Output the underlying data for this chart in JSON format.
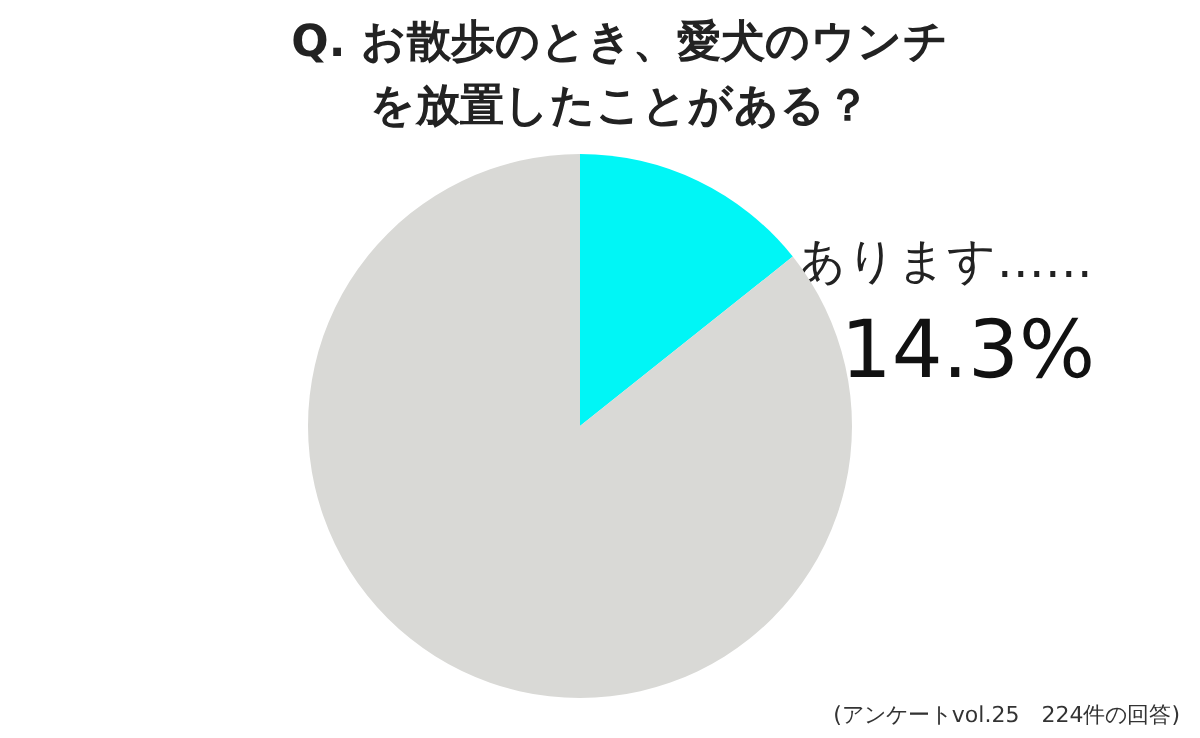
{
  "chart_data": {
    "type": "pie",
    "title": "Q.  お散歩のとき、愛犬のウンチを放置したことがある？",
    "categories": [
      "あります……",
      null
    ],
    "values": [
      14.3,
      85.7
    ],
    "colors": [
      "#00f6f6",
      "#d9d9d6"
    ],
    "value_labels": [
      "14.3%",
      null
    ],
    "annotations": [
      "(アンケートvol.25　224件の回答)"
    ]
  }
}
